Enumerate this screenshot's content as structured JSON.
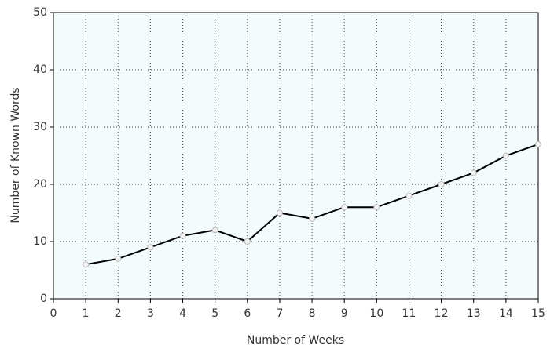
{
  "chart_data": {
    "type": "line",
    "x_label": "Number of Weeks",
    "y_label": "Number of Known Words",
    "x": [
      1,
      2,
      3,
      4,
      5,
      6,
      7,
      8,
      9,
      10,
      11,
      12,
      13,
      14,
      15
    ],
    "series": [
      {
        "color": "#000000",
        "values": [
          6,
          7,
          9,
          11,
          12,
          10,
          15,
          14,
          16,
          16,
          18,
          20,
          22,
          25,
          27
        ]
      }
    ],
    "xlim": [
      0,
      15
    ],
    "xticks": [
      0,
      1,
      2,
      3,
      4,
      5,
      6,
      7,
      8,
      9,
      10,
      11,
      12,
      13,
      14,
      15
    ],
    "ylim": [
      0,
      50
    ],
    "yticks": [
      0,
      10,
      20,
      30,
      40,
      50
    ],
    "grid": true
  }
}
